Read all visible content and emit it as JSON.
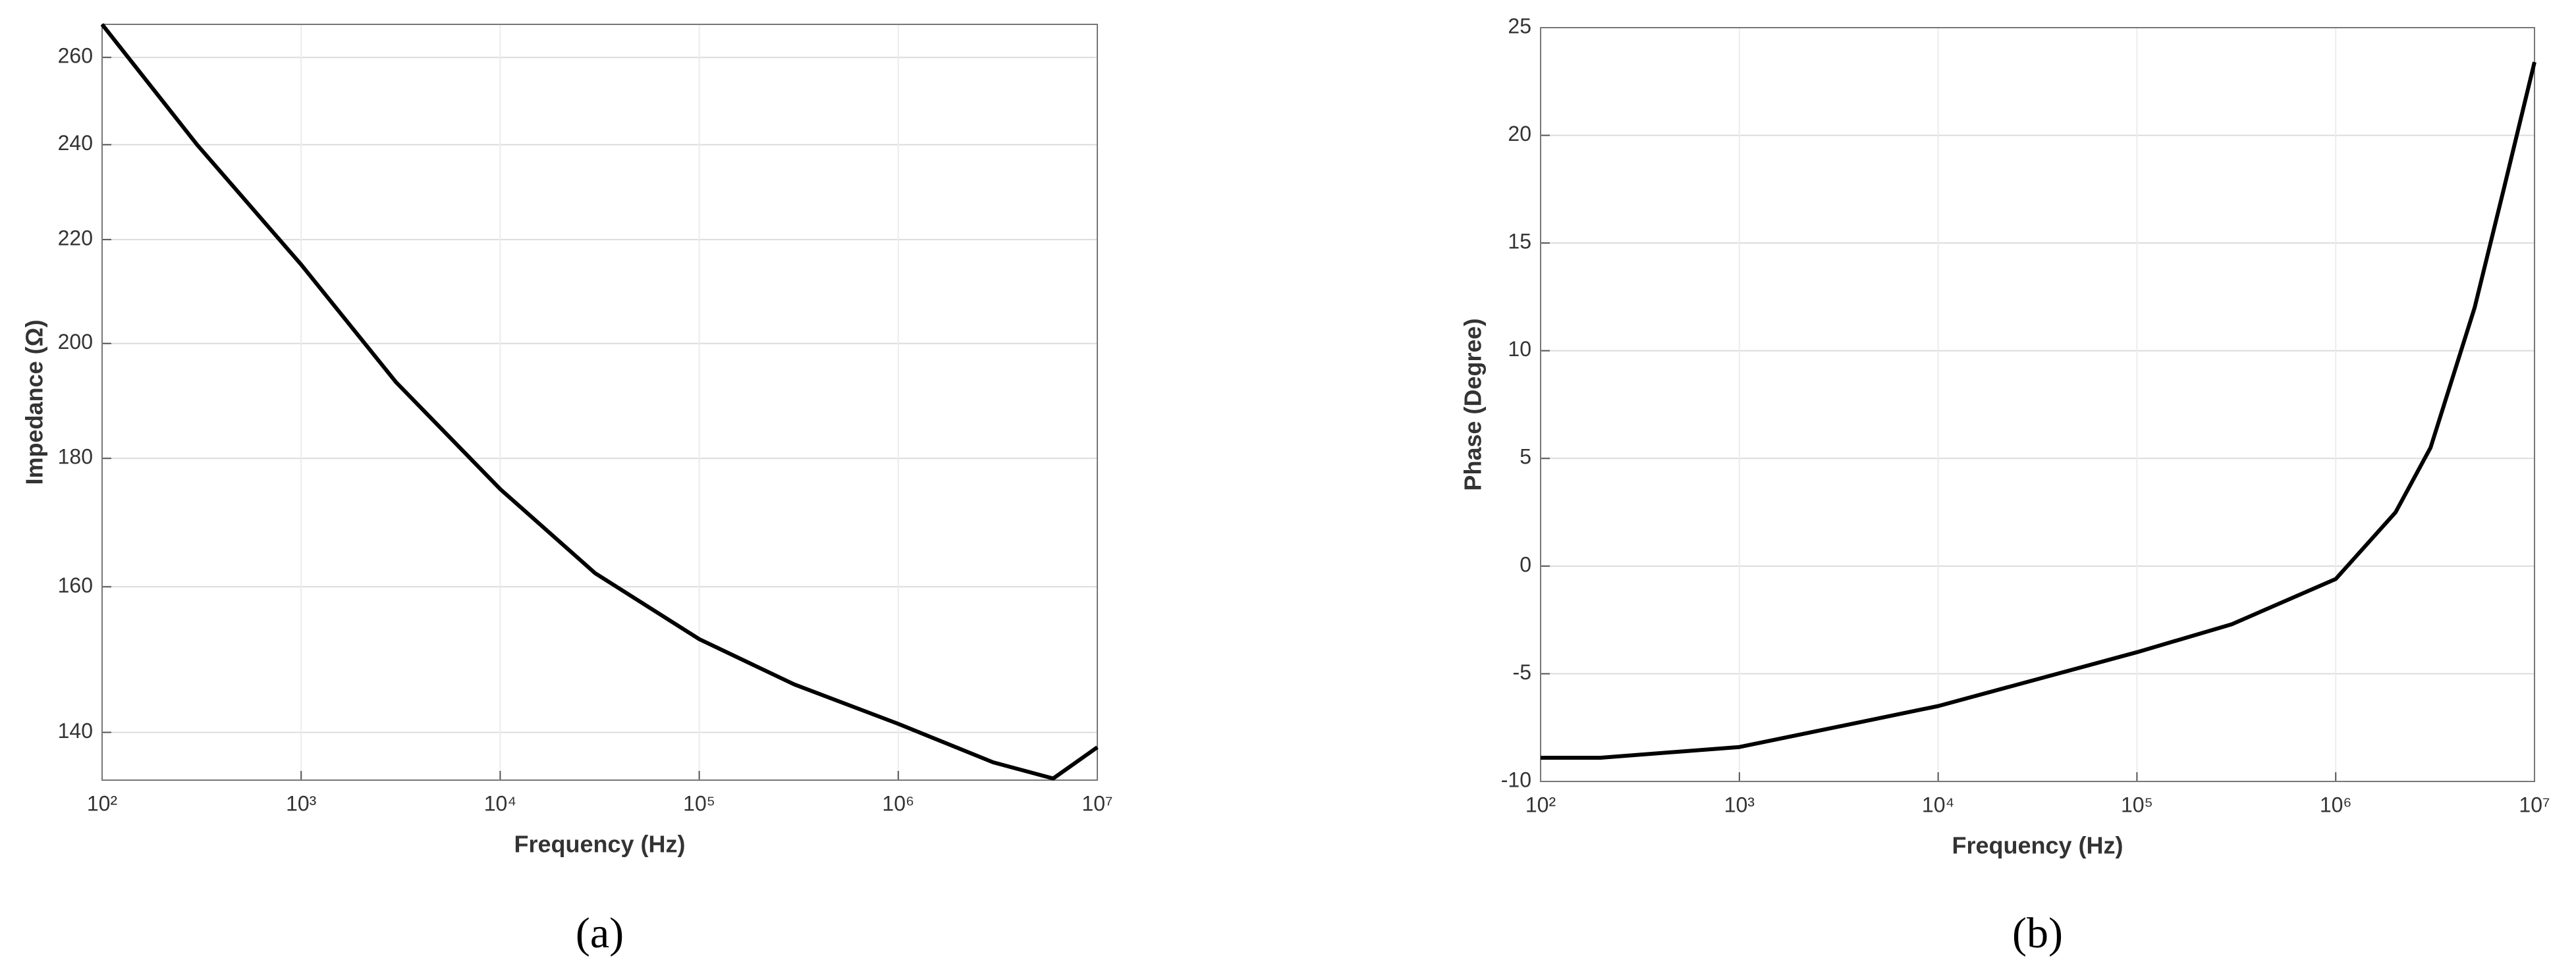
{
  "chart_data": [
    {
      "type": "line",
      "label": "(a)",
      "x_label": "Frequency (Hz)",
      "y_label": "Impedance (Ω)",
      "xscale": "log",
      "yscale": "log",
      "grid": true,
      "xlim": [
        100,
        10000000
      ],
      "xticks": [
        {
          "value": 100,
          "label": "10²"
        },
        {
          "value": 1000,
          "label": "10³"
        },
        {
          "value": 10000,
          "label": "10⁴"
        },
        {
          "value": 100000,
          "label": "10⁵"
        },
        {
          "value": 1000000,
          "label": "10⁶"
        },
        {
          "value": 10000000,
          "label": "10⁷"
        }
      ],
      "ylim": [
        134,
        268
      ],
      "yticks": [
        140,
        160,
        180,
        200,
        220,
        240,
        260
      ],
      "x": [
        100,
        300,
        1000,
        3000,
        10000,
        30000,
        100000,
        300000,
        1000000,
        3000000,
        6000000,
        10000000
      ],
      "series": [
        {
          "color": "#000000",
          "values": [
            268,
            240,
            215,
            193,
            175,
            162,
            152.5,
            146.3,
            141.1,
            136.2,
            134.2,
            138.1
          ]
        }
      ]
    },
    {
      "type": "line",
      "label": "(b)",
      "x_label": "Frequency (Hz)",
      "y_label": "Phase (Degree)",
      "xscale": "log",
      "yscale": "linear",
      "grid": true,
      "xlim": [
        100,
        10000000
      ],
      "xticks": [
        {
          "value": 100,
          "label": "10²"
        },
        {
          "value": 1000,
          "label": "10³"
        },
        {
          "value": 10000,
          "label": "10⁴"
        },
        {
          "value": 100000,
          "label": "10⁵"
        },
        {
          "value": 1000000,
          "label": "10⁶"
        },
        {
          "value": 10000000,
          "label": "10⁷"
        }
      ],
      "ylim": [
        -10,
        25
      ],
      "yticks": [
        -10,
        -5,
        0,
        5,
        10,
        15,
        20,
        25
      ],
      "x": [
        100,
        200,
        1000,
        10000,
        100000,
        300000,
        1000000,
        2000000,
        3000000,
        5000000,
        7000000,
        10000000
      ],
      "series": [
        {
          "color": "#000000",
          "values": [
            -8.9,
            -8.9,
            -8.4,
            -6.5,
            -4.0,
            -2.7,
            -0.6,
            2.5,
            5.5,
            12,
            17.5,
            23.4
          ]
        }
      ]
    }
  ]
}
